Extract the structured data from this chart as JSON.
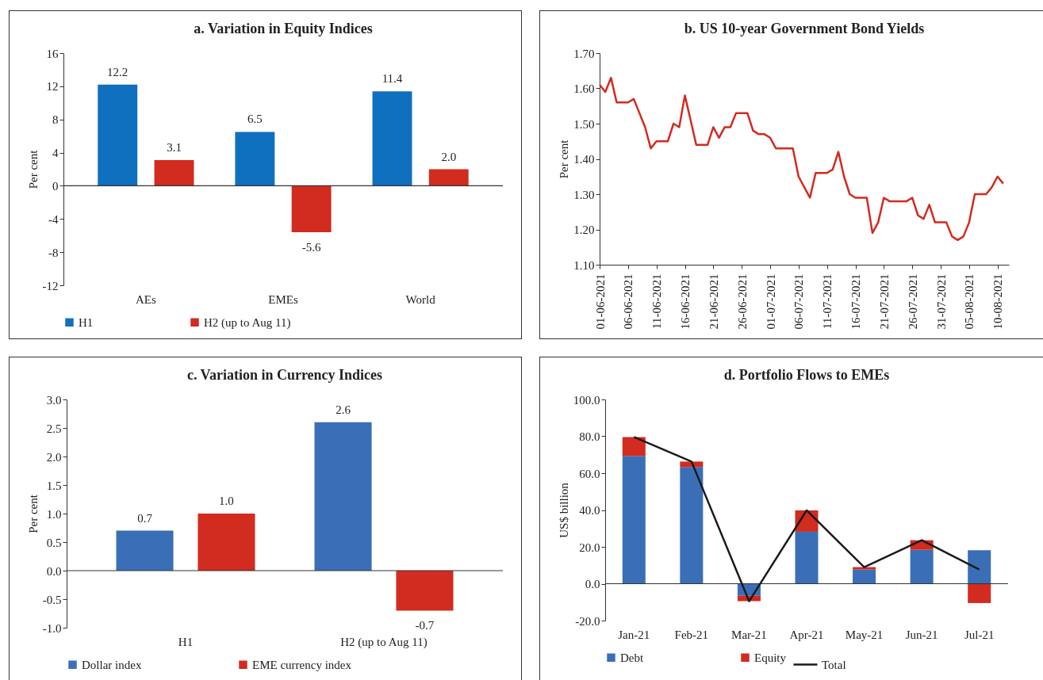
{
  "chart_data": [
    {
      "type": "bar",
      "title": "a. Variation in Equity Indices",
      "ylabel": "Per cent",
      "categories": [
        "AEs",
        "EMEs",
        "World"
      ],
      "series": [
        {
          "name": "H1",
          "color": "#1070c0",
          "values": [
            12.2,
            6.5,
            11.4
          ],
          "value_labels": [
            "12.2",
            "6.5",
            "11.4"
          ]
        },
        {
          "name": "H2 (up to Aug 11)",
          "color": "#d22b1f",
          "values": [
            3.1,
            -5.6,
            2.0
          ],
          "value_labels": [
            "3.1",
            "-5.6",
            "2.0"
          ]
        }
      ],
      "ylim": [
        -12,
        16
      ],
      "yticks": [
        -12,
        -8,
        -4,
        0,
        4,
        8,
        12,
        16
      ],
      "legend": "bottom"
    },
    {
      "type": "line",
      "title": "b. US 10-year Government Bond Yields",
      "ylabel": "Per cent",
      "x": [
        "2021-06-01",
        "2021-06-02",
        "2021-06-03",
        "2021-06-04",
        "2021-06-06",
        "2021-06-07",
        "2021-06-08",
        "2021-06-09",
        "2021-06-10",
        "2021-06-11",
        "2021-06-13",
        "2021-06-14",
        "2021-06-15",
        "2021-06-16",
        "2021-06-17",
        "2021-06-18",
        "2021-06-20",
        "2021-06-21",
        "2021-06-22",
        "2021-06-23",
        "2021-06-24",
        "2021-06-25",
        "2021-06-27",
        "2021-06-28",
        "2021-06-29",
        "2021-06-30",
        "2021-07-01",
        "2021-07-02",
        "2021-07-05",
        "2021-07-06",
        "2021-07-07",
        "2021-07-08",
        "2021-07-09",
        "2021-07-11",
        "2021-07-12",
        "2021-07-13",
        "2021-07-14",
        "2021-07-15",
        "2021-07-16",
        "2021-07-18",
        "2021-07-19",
        "2021-07-20",
        "2021-07-21",
        "2021-07-22",
        "2021-07-23",
        "2021-07-25",
        "2021-07-26",
        "2021-07-27",
        "2021-07-28",
        "2021-07-29",
        "2021-07-30",
        "2021-08-01",
        "2021-08-02",
        "2021-08-03",
        "2021-08-04",
        "2021-08-05",
        "2021-08-06",
        "2021-08-08",
        "2021-08-09",
        "2021-08-10",
        "2021-08-11"
      ],
      "series": [
        {
          "color": "#d22b1f",
          "values": [
            1.61,
            1.59,
            1.63,
            1.56,
            1.56,
            1.57,
            1.53,
            1.49,
            1.43,
            1.45,
            1.45,
            1.5,
            1.49,
            1.58,
            1.51,
            1.44,
            1.44,
            1.49,
            1.46,
            1.49,
            1.49,
            1.53,
            1.53,
            1.48,
            1.47,
            1.47,
            1.46,
            1.43,
            1.43,
            1.35,
            1.32,
            1.29,
            1.36,
            1.36,
            1.37,
            1.42,
            1.35,
            1.3,
            1.29,
            1.29,
            1.19,
            1.22,
            1.29,
            1.28,
            1.28,
            1.28,
            1.29,
            1.24,
            1.23,
            1.27,
            1.22,
            1.22,
            1.18,
            1.17,
            1.18,
            1.22,
            1.3,
            1.3,
            1.32,
            1.35,
            1.33
          ]
        }
      ],
      "xlim": [
        "2021-06-01",
        "2021-08-12"
      ],
      "xticks": [
        {
          "value": "2021-06-01",
          "label": "01-06-2021"
        },
        {
          "value": "2021-06-06",
          "label": "06-06-2021"
        },
        {
          "value": "2021-06-11",
          "label": "11-06-2021"
        },
        {
          "value": "2021-06-16",
          "label": "16-06-2021"
        },
        {
          "value": "2021-06-21",
          "label": "21-06-2021"
        },
        {
          "value": "2021-06-26",
          "label": "26-06-2021"
        },
        {
          "value": "2021-07-01",
          "label": "01-07-2021"
        },
        {
          "value": "2021-07-06",
          "label": "06-07-2021"
        },
        {
          "value": "2021-07-11",
          "label": "11-07-2021"
        },
        {
          "value": "2021-07-16",
          "label": "16-07-2021"
        },
        {
          "value": "2021-07-21",
          "label": "21-07-2021"
        },
        {
          "value": "2021-07-26",
          "label": "26-07-2021"
        },
        {
          "value": "2021-07-31",
          "label": "31-07-2021"
        },
        {
          "value": "2021-08-05",
          "label": "05-08-2021"
        },
        {
          "value": "2021-08-10",
          "label": "10-08-2021"
        }
      ],
      "ylim": [
        1.1,
        1.7
      ],
      "yticks": [
        {
          "value": 1.1,
          "label": "1.10"
        },
        {
          "value": 1.2,
          "label": "1.20"
        },
        {
          "value": 1.3,
          "label": "1.30"
        },
        {
          "value": 1.4,
          "label": "1.40"
        },
        {
          "value": 1.5,
          "label": "1.50"
        },
        {
          "value": 1.6,
          "label": "1.60"
        },
        {
          "value": 1.7,
          "label": "1.70"
        }
      ]
    },
    {
      "type": "bar",
      "title": "c. Variation in Currency Indices",
      "ylabel": "Per cent",
      "categories": [
        "H1",
        "H2 (up to Aug 11)"
      ],
      "series": [
        {
          "name": "Dollar index",
          "color": "#3a6fb7",
          "values": [
            0.7,
            2.6
          ],
          "value_labels": [
            "0.7",
            "2.6"
          ]
        },
        {
          "name": "EME currency index",
          "color": "#d22b1f",
          "values": [
            1.0,
            -0.7
          ],
          "value_labels": [
            "1.0",
            "-0.7"
          ]
        }
      ],
      "ylim": [
        -1,
        3
      ],
      "yticks": [
        {
          "value": -1,
          "label": "-1.0"
        },
        {
          "value": -0.5,
          "label": "-0.5"
        },
        {
          "value": 0,
          "label": "0.0"
        },
        {
          "value": 0.5,
          "label": "0.5"
        },
        {
          "value": 1,
          "label": "1.0"
        },
        {
          "value": 1.5,
          "label": "1.5"
        },
        {
          "value": 2,
          "label": "2.0"
        },
        {
          "value": 2.5,
          "label": "2.5"
        },
        {
          "value": 3,
          "label": "3.0"
        }
      ],
      "legend": "bottom"
    },
    {
      "type": "bar",
      "stacked": true,
      "title": "d. Portfolio Flows to EMEs",
      "ylabel": "US$ billion",
      "categories": [
        "Jan-21",
        "Feb-21",
        "Mar-21",
        "Apr-21",
        "May-21",
        "Jun-21",
        "Jul-21"
      ],
      "series": [
        {
          "name": "Debt",
          "color": "#3a6fb7",
          "values": [
            69.4,
            63.3,
            -6.6,
            28.2,
            7.7,
            18.4,
            18.2
          ]
        },
        {
          "name": "Equity",
          "color": "#d22b1f",
          "values": [
            10.2,
            3.0,
            -2.9,
            11.6,
            1.3,
            5.2,
            -10.5
          ]
        },
        {
          "name": "Total",
          "type": "line",
          "color": "#1a1a1a",
          "values": [
            79.6,
            66.3,
            -9.5,
            39.8,
            9.0,
            23.6,
            7.7
          ]
        }
      ],
      "ylim": [
        -20,
        100
      ],
      "yticks": [
        {
          "value": -20,
          "label": "-20.0"
        },
        {
          "value": 0,
          "label": "0.0"
        },
        {
          "value": 20,
          "label": "20.0"
        },
        {
          "value": 40,
          "label": "40.0"
        },
        {
          "value": 60,
          "label": "60.0"
        },
        {
          "value": 80,
          "label": "80.0"
        },
        {
          "value": 100,
          "label": "100.0"
        }
      ],
      "legend": "bottom"
    }
  ]
}
